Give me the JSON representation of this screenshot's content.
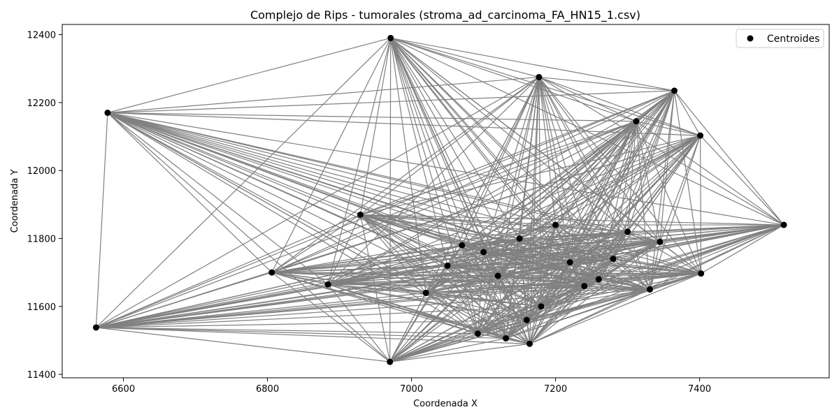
{
  "chart_data": {
    "type": "scatter",
    "title": "Complejo de Rips - tumorales (stroma_ad_carcinoma_FA_HN15_1.csv)",
    "xlabel": "Coordenada X",
    "ylabel": "Coordenada Y",
    "xlim": [
      6515,
      7580
    ],
    "ylim": [
      11390,
      12430
    ],
    "xticks": [
      6600,
      6800,
      7000,
      7200,
      7400
    ],
    "yticks": [
      11400,
      11600,
      11800,
      12000,
      12200,
      12400
    ],
    "legend": {
      "position": "top-right",
      "entries": [
        "Centroides"
      ]
    },
    "colors": {
      "points": "#000000",
      "edges": "#808080"
    },
    "grid": false,
    "series": [
      {
        "name": "Centroides",
        "kind": "points",
        "x": [
          6971,
          7177,
          7365,
          6578,
          7401,
          7517,
          6562,
          6970,
          7164,
          7131,
          6806,
          7402,
          7331,
          6929,
          7312,
          7092,
          6884,
          7100,
          7150,
          7220,
          7260,
          7050,
          7300,
          7345,
          7020,
          7180,
          7240,
          7280,
          7120,
          7070,
          7200,
          7160
        ],
        "y": [
          12390,
          12275,
          12235,
          12170,
          12103,
          11840,
          11538,
          11437,
          11490,
          11506,
          11700,
          11697,
          11650,
          11870,
          12145,
          11520,
          11665,
          11760,
          11800,
          11730,
          11680,
          11720,
          11820,
          11790,
          11640,
          11600,
          11660,
          11740,
          11690,
          11780,
          11840,
          11560
        ]
      }
    ],
    "edges": "complete"
  }
}
